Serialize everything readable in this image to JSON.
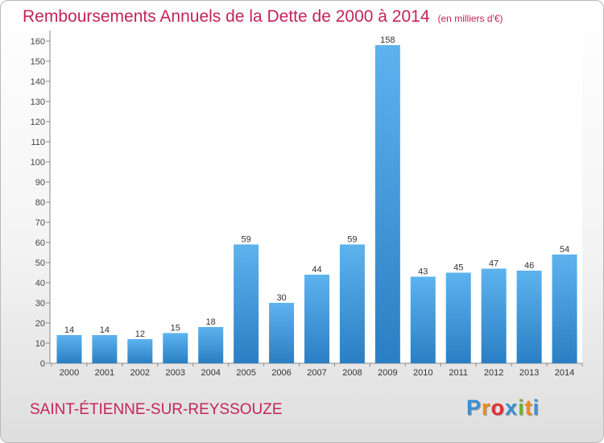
{
  "header": {
    "title": "Remboursements Annuels de la Dette de 2000 à 2014",
    "unit": "(en milliers d'€)"
  },
  "commune": "SAINT-ÉTIENNE-SUR-REYSSOUZE",
  "logo": {
    "letters": [
      "P",
      "r",
      "o",
      "x",
      "i",
      "t",
      "i"
    ],
    "colors": [
      "#3a8fd1",
      "#f08a1c",
      "#e5302e",
      "#3a8fd1",
      "#6bb52b",
      "#f08a1c",
      "#3a8fd1"
    ]
  },
  "chart_data": {
    "type": "bar",
    "title": "Remboursements Annuels de la Dette de 2000 à 2014",
    "xlabel": "",
    "ylabel": "",
    "categories": [
      "2000",
      "2001",
      "2002",
      "2003",
      "2004",
      "2005",
      "2006",
      "2007",
      "2008",
      "2009",
      "2010",
      "2011",
      "2012",
      "2013",
      "2014"
    ],
    "values": [
      14,
      14,
      12,
      15,
      18,
      59,
      30,
      44,
      59,
      158,
      43,
      45,
      47,
      46,
      54
    ],
    "ylim": [
      0,
      165
    ],
    "yticks": [
      0,
      10,
      20,
      30,
      40,
      50,
      60,
      70,
      80,
      90,
      100,
      110,
      120,
      130,
      140,
      150,
      160
    ],
    "grid": false,
    "colors": {
      "bar": "#3a9ee4",
      "bar_light": "#5db3ee",
      "bar_dark": "#2a7fc4",
      "axis": "#888888"
    }
  }
}
